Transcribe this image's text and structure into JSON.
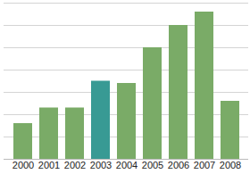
{
  "chart_data": {
    "type": "bar",
    "categories": [
      "2000",
      "2001",
      "2002",
      "2003",
      "2004",
      "2005",
      "2006",
      "2007",
      "2008"
    ],
    "values": [
      1.6,
      2.3,
      2.3,
      3.5,
      3.4,
      5.0,
      6.0,
      6.6,
      2.6
    ],
    "colors": [
      "#7aab67",
      "#7aab67",
      "#7aab67",
      "#389a94",
      "#7aab67",
      "#7aab67",
      "#7aab67",
      "#7aab67",
      "#7aab67"
    ],
    "ylim": [
      0,
      7
    ],
    "yticks": [
      0,
      1,
      2,
      3,
      4,
      5,
      6,
      7
    ],
    "grid": true,
    "tick_labels": "x"
  }
}
